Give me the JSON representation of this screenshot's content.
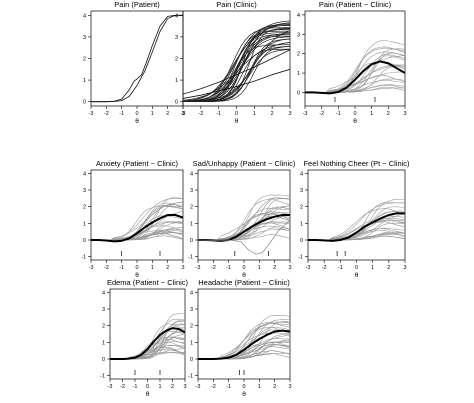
{
  "chart_data": [
    {
      "type": "line",
      "title": "Pain (Patient)",
      "xlabel": "θ",
      "xlim": [
        -3,
        3
      ],
      "ylim": [
        -0.2,
        4.2
      ],
      "x_ticks": [
        -3,
        -2,
        -1,
        0,
        1,
        2,
        3
      ],
      "y_ticks": [
        0,
        1,
        2,
        3,
        4
      ],
      "difference_panel": false,
      "series_count": 2,
      "bold_curve": false,
      "series": [
        {
          "style": "black-thin",
          "points": [
            [
              -3,
              0
            ],
            [
              -2,
              0
            ],
            [
              -1.5,
              0.02
            ],
            [
              -1,
              0.12
            ],
            [
              -0.5,
              0.55
            ],
            [
              -0.2,
              0.95
            ],
            [
              0,
              1.05
            ],
            [
              0.3,
              1.25
            ],
            [
              0.6,
              1.8
            ],
            [
              1,
              2.6
            ],
            [
              1.5,
              3.5
            ],
            [
              2,
              3.95
            ],
            [
              2.5,
              4
            ],
            [
              3,
              4
            ]
          ]
        },
        {
          "style": "black-thin",
          "points": [
            [
              -3,
              0
            ],
            [
              -2,
              0
            ],
            [
              -1.5,
              0.01
            ],
            [
              -1,
              0.05
            ],
            [
              -0.5,
              0.25
            ],
            [
              0,
              0.75
            ],
            [
              0.5,
              1.4
            ],
            [
              1,
              2.3
            ],
            [
              1.5,
              3.25
            ],
            [
              2,
              3.85
            ],
            [
              2.5,
              4
            ],
            [
              3,
              4
            ]
          ]
        }
      ],
      "markers": []
    },
    {
      "type": "line",
      "title": "Pain (Clinic)",
      "xlabel": "θ",
      "xlim": [
        -3,
        3
      ],
      "ylim": [
        -0.2,
        4.2
      ],
      "x_ticks": [
        -3,
        -2,
        -1,
        0,
        1,
        2,
        3
      ],
      "y_ticks": [
        0,
        1,
        2,
        3,
        4
      ],
      "difference_panel": false,
      "series_count": 29,
      "bold_curve": false,
      "series": [
        {
          "style": "black-thin",
          "points": [
            [
              -3,
              0.35
            ],
            [
              -2,
              0.6
            ],
            [
              -1,
              0.9
            ],
            [
              0,
              1.25
            ],
            [
              1,
              1.6
            ],
            [
              2,
              2.0
            ],
            [
              3,
              2.4
            ]
          ]
        },
        {
          "style": "black-thin",
          "points": [
            [
              -3,
              0.15
            ],
            [
              -2,
              0.3
            ],
            [
              -1,
              0.5
            ],
            [
              0,
              0.7
            ],
            [
              1,
              0.95
            ],
            [
              2,
              1.25
            ],
            [
              3,
              1.5
            ]
          ]
        }
      ],
      "markers": []
    },
    {
      "type": "line",
      "title": "Pain (Patient − Clinic)",
      "xlabel": "θ",
      "xlim": [
        -3,
        3
      ],
      "ylim": [
        -0.7,
        4.2
      ],
      "x_ticks": [
        -3,
        -2,
        -1,
        0,
        1,
        2,
        3
      ],
      "y_ticks": [
        0,
        1,
        2,
        3,
        4
      ],
      "difference_panel": true,
      "series_count": 22,
      "bold_curve": true,
      "series": [
        {
          "style": "mean-bold",
          "points": [
            [
              -3,
              0
            ],
            [
              -2.5,
              0
            ],
            [
              -2,
              -0.02
            ],
            [
              -1.5,
              -0.05
            ],
            [
              -1,
              0.02
            ],
            [
              -0.5,
              0.25
            ],
            [
              0,
              0.65
            ],
            [
              0.5,
              1.1
            ],
            [
              1,
              1.45
            ],
            [
              1.5,
              1.6
            ],
            [
              2,
              1.5
            ],
            [
              2.5,
              1.25
            ],
            [
              3,
              1.0
            ]
          ]
        }
      ],
      "markers": [
        -1.2,
        1.2
      ]
    },
    {
      "type": "line",
      "title": "Anxiety (Patient − Clinic)",
      "xlabel": "θ",
      "xlim": [
        -3,
        3
      ],
      "ylim": [
        -1.2,
        4.2
      ],
      "x_ticks": [
        -3,
        -2,
        -1,
        0,
        1,
        2,
        3
      ],
      "y_ticks": [
        -1,
        0,
        1,
        2,
        3,
        4
      ],
      "difference_panel": true,
      "series_count": 26,
      "bold_curve": true,
      "series": [
        {
          "style": "mean-bold",
          "points": [
            [
              -3,
              0
            ],
            [
              -2.5,
              0
            ],
            [
              -2,
              -0.03
            ],
            [
              -1.5,
              -0.08
            ],
            [
              -1,
              -0.05
            ],
            [
              -0.5,
              0.1
            ],
            [
              0,
              0.4
            ],
            [
              0.5,
              0.75
            ],
            [
              1,
              1.05
            ],
            [
              1.5,
              1.3
            ],
            [
              2,
              1.5
            ],
            [
              2.5,
              1.5
            ],
            [
              3,
              1.35
            ]
          ]
        }
      ],
      "markers": [
        -1.0,
        1.5
      ]
    },
    {
      "type": "line",
      "title": "Sad/Unhappy (Patient − Clinic)",
      "xlabel": "θ",
      "xlim": [
        -3,
        3
      ],
      "ylim": [
        -1.2,
        4.2
      ],
      "x_ticks": [
        -3,
        -2,
        -1,
        0,
        1,
        2,
        3
      ],
      "y_ticks": [
        -1,
        0,
        1,
        2,
        3,
        4
      ],
      "difference_panel": true,
      "series_count": 24,
      "bold_curve": true,
      "series": [
        {
          "style": "mean-bold",
          "points": [
            [
              -3,
              0
            ],
            [
              -2.5,
              0
            ],
            [
              -2,
              -0.02
            ],
            [
              -1.5,
              -0.05
            ],
            [
              -1,
              0.0
            ],
            [
              -0.5,
              0.2
            ],
            [
              0,
              0.5
            ],
            [
              0.5,
              0.8
            ],
            [
              1,
              1.05
            ],
            [
              1.5,
              1.25
            ],
            [
              2,
              1.4
            ],
            [
              2.5,
              1.5
            ],
            [
              3,
              1.5
            ]
          ]
        },
        {
          "style": "gray-dip",
          "points": [
            [
              -3,
              0
            ],
            [
              -2,
              -0.02
            ],
            [
              -1,
              0
            ],
            [
              -0.2,
              -0.1
            ],
            [
              0.3,
              -0.6
            ],
            [
              0.8,
              -0.85
            ],
            [
              1.2,
              -0.75
            ],
            [
              1.6,
              -0.3
            ],
            [
              2.2,
              0.5
            ],
            [
              3,
              1.2
            ]
          ]
        }
      ],
      "markers": [
        -0.6,
        1.6
      ]
    },
    {
      "type": "line",
      "title": "Feel Nothing Cheer (Pt − Clinic)",
      "xlabel": "θ",
      "xlim": [
        -3,
        3
      ],
      "ylim": [
        -1.2,
        4.2
      ],
      "x_ticks": [
        -3,
        -2,
        -1,
        0,
        1,
        2,
        3
      ],
      "y_ticks": [
        -1,
        0,
        1,
        2,
        3,
        4
      ],
      "difference_panel": true,
      "series_count": 24,
      "bold_curve": true,
      "series": [
        {
          "style": "mean-bold",
          "points": [
            [
              -3,
              0
            ],
            [
              -2.5,
              0
            ],
            [
              -2,
              -0.02
            ],
            [
              -1.5,
              -0.05
            ],
            [
              -1,
              0.0
            ],
            [
              -0.5,
              0.15
            ],
            [
              0,
              0.45
            ],
            [
              0.5,
              0.8
            ],
            [
              1,
              1.05
            ],
            [
              1.5,
              1.3
            ],
            [
              2,
              1.5
            ],
            [
              2.5,
              1.6
            ],
            [
              3,
              1.6
            ]
          ]
        }
      ],
      "markers": [
        -1.2,
        -0.7
      ]
    },
    {
      "type": "line",
      "title": "Edema (Patient − Clinic)",
      "xlabel": "θ",
      "xlim": [
        -3,
        3
      ],
      "ylim": [
        -1.2,
        4.2
      ],
      "x_ticks": [
        -3,
        -2,
        -1,
        0,
        1,
        2,
        3
      ],
      "y_ticks": [
        -1,
        0,
        1,
        2,
        3,
        4
      ],
      "difference_panel": true,
      "series_count": 26,
      "bold_curve": true,
      "series": [
        {
          "style": "mean-bold",
          "points": [
            [
              -3,
              0
            ],
            [
              -2.5,
              0
            ],
            [
              -2,
              0
            ],
            [
              -1.5,
              0.02
            ],
            [
              -1,
              0.08
            ],
            [
              -0.5,
              0.25
            ],
            [
              0,
              0.6
            ],
            [
              0.5,
              1.05
            ],
            [
              1,
              1.45
            ],
            [
              1.5,
              1.7
            ],
            [
              2,
              1.85
            ],
            [
              2.5,
              1.8
            ],
            [
              3,
              1.6
            ]
          ]
        }
      ],
      "markers": [
        -1.0,
        1.0
      ]
    },
    {
      "type": "line",
      "title": "Headache (Patient − Clinic)",
      "xlabel": "θ",
      "xlim": [
        -3,
        3
      ],
      "ylim": [
        -1.2,
        4.2
      ],
      "x_ticks": [
        -3,
        -2,
        -1,
        0,
        1,
        2,
        3
      ],
      "y_ticks": [
        -1,
        0,
        1,
        2,
        3,
        4
      ],
      "difference_panel": true,
      "series_count": 26,
      "bold_curve": true,
      "series": [
        {
          "style": "mean-bold",
          "points": [
            [
              -3,
              0
            ],
            [
              -2.5,
              0
            ],
            [
              -2,
              0
            ],
            [
              -1.5,
              0.02
            ],
            [
              -1,
              0.08
            ],
            [
              -0.5,
              0.25
            ],
            [
              0,
              0.55
            ],
            [
              0.5,
              0.9
            ],
            [
              1,
              1.2
            ],
            [
              1.5,
              1.45
            ],
            [
              2,
              1.65
            ],
            [
              2.5,
              1.7
            ],
            [
              3,
              1.65
            ]
          ]
        }
      ],
      "markers": [
        -0.3,
        0.0
      ]
    }
  ]
}
